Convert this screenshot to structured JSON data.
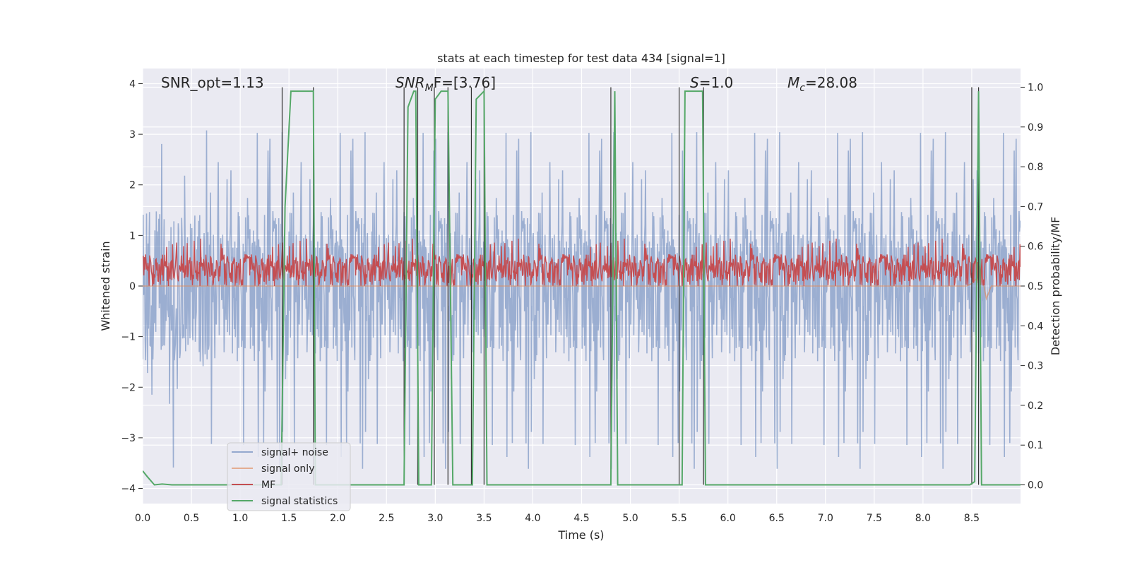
{
  "chart_data": {
    "type": "line",
    "title": "stats at each timestep for test data 434 [signal=1]",
    "xlabel": "Time (s)",
    "ylabel_left": "Whitened strain",
    "ylabel_right": "Detection probability/MF",
    "xlim": [
      0.0,
      9.0
    ],
    "ylim_left": [
      -4.3,
      4.3
    ],
    "ylim_right": [
      -0.047,
      1.047
    ],
    "x_ticks": [
      "0.0",
      "0.5",
      "1.0",
      "1.5",
      "2.0",
      "2.5",
      "3.0",
      "3.5",
      "4.0",
      "4.5",
      "5.0",
      "5.5",
      "6.0",
      "6.5",
      "7.0",
      "7.5",
      "8.0",
      "8.5"
    ],
    "y_ticks_left": [
      "4",
      "3",
      "2",
      "1",
      "0",
      "−1",
      "−2",
      "−3",
      "−4"
    ],
    "y_ticks_right": [
      "1.0",
      "0.9",
      "0.8",
      "0.7",
      "0.6",
      "0.5",
      "0.4",
      "0.3",
      "0.2",
      "0.1",
      "0.0"
    ],
    "grid": true,
    "legend_position": "lower-left",
    "annotations": {
      "snr_opt": "SNR_opt=1.13",
      "snr_mf_base": "SNR",
      "snr_mf_sub": "M",
      "snr_mf_rest": "F=[3.76]",
      "s_base": "S",
      "s_rest": "=1.0",
      "mc_base": "M",
      "mc_sub": "c",
      "mc_rest": "=28.08"
    },
    "series": [
      {
        "name": "signal+ noise",
        "color": "#4c72b0",
        "amplitude_typical": 1.5,
        "amplitude_peak": 3.2
      },
      {
        "name": "signal only",
        "color": "#dd8452",
        "x": [
          0.0,
          8.45,
          8.5,
          8.6,
          8.65,
          8.7,
          8.8,
          9.0
        ],
        "y": [
          0.0,
          0.0,
          0.05,
          0.25,
          -0.25,
          0.0,
          0.0,
          0.0
        ]
      },
      {
        "name": "MF",
        "color": "#c44e52",
        "mean_right_axis": 0.55,
        "range_right_axis": [
          0.5,
          0.62
        ]
      },
      {
        "name": "signal statistics",
        "color": "#55a868",
        "x": [
          0.0,
          0.05,
          0.12,
          0.2,
          0.3,
          1.42,
          1.46,
          1.52,
          1.75,
          1.77,
          2.68,
          2.72,
          2.78,
          2.8,
          2.83,
          2.96,
          3.0,
          3.06,
          3.13,
          3.18,
          3.38,
          3.42,
          3.5,
          3.53,
          3.58,
          4.8,
          4.84,
          4.87,
          4.92,
          5.5,
          5.53,
          5.56,
          5.74,
          5.77,
          8.48,
          8.53,
          8.57,
          8.6,
          8.65,
          9.0
        ],
        "y": [
          0.035,
          0.02,
          0.0,
          0.002,
          0.0,
          0.0,
          0.7,
          0.99,
          0.99,
          0.0,
          0.0,
          0.95,
          0.99,
          0.99,
          0.0,
          0.0,
          0.97,
          0.99,
          0.99,
          0.0,
          0.0,
          0.97,
          0.99,
          0.0,
          0.0,
          0.0,
          0.99,
          0.0,
          0.0,
          0.0,
          0.0,
          0.99,
          0.99,
          0.0,
          0.0,
          0.008,
          0.99,
          0.0,
          0.0,
          0.0
        ]
      },
      {
        "name": "detection markers",
        "color": "#333333",
        "x": [
          1.43,
          1.75,
          2.68,
          2.82,
          2.99,
          3.13,
          3.37,
          3.5,
          4.8,
          5.5,
          5.75,
          8.5,
          8.57
        ]
      }
    ]
  }
}
